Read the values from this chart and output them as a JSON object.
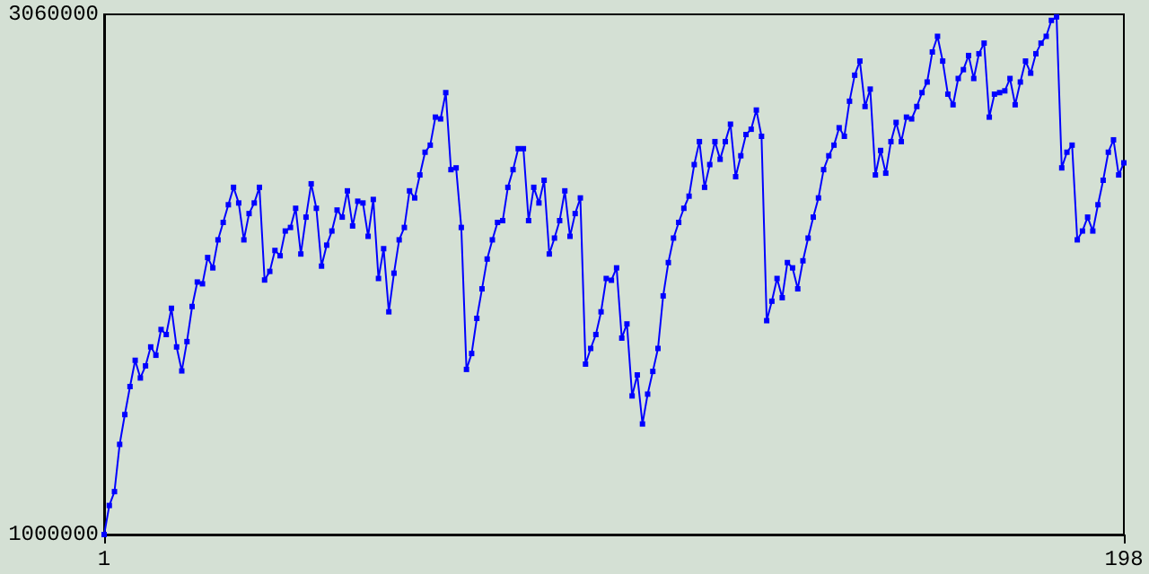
{
  "chart_data": {
    "type": "line",
    "x": [
      1,
      2,
      3,
      4,
      5,
      6,
      7,
      8,
      9,
      10,
      11,
      12,
      13,
      14,
      15,
      16,
      17,
      18,
      19,
      20,
      21,
      22,
      23,
      24,
      25,
      26,
      27,
      28,
      29,
      30,
      31,
      32,
      33,
      34,
      35,
      36,
      37,
      38,
      39,
      40,
      41,
      42,
      43,
      44,
      45,
      46,
      47,
      48,
      49,
      50,
      51,
      52,
      53,
      54,
      55,
      56,
      57,
      58,
      59,
      60,
      61,
      62,
      63,
      64,
      65,
      66,
      67,
      68,
      69,
      70,
      71,
      72,
      73,
      74,
      75,
      76,
      77,
      78,
      79,
      80,
      81,
      82,
      83,
      84,
      85,
      86,
      87,
      88,
      89,
      90,
      91,
      92,
      93,
      94,
      95,
      96,
      97,
      98,
      99,
      100,
      101,
      102,
      103,
      104,
      105,
      106,
      107,
      108,
      109,
      110,
      111,
      112,
      113,
      114,
      115,
      116,
      117,
      118,
      119,
      120,
      121,
      122,
      123,
      124,
      125,
      126,
      127,
      128,
      129,
      130,
      131,
      132,
      133,
      134,
      135,
      136,
      137,
      138,
      139,
      140,
      141,
      142,
      143,
      144,
      145,
      146,
      147,
      148,
      149,
      150,
      151,
      152,
      153,
      154,
      155,
      156,
      157,
      158,
      159,
      160,
      161,
      162,
      163,
      164,
      165,
      166,
      167,
      168,
      169,
      170,
      171,
      172,
      173,
      174,
      175,
      176,
      177,
      178,
      179,
      180,
      181,
      182,
      183,
      184,
      185,
      186,
      187,
      188,
      189,
      190,
      191,
      192,
      193,
      194,
      195,
      196,
      197,
      198
    ],
    "series": [
      {
        "color": "#0000ff",
        "values": [
          1000000,
          1115000,
          1170000,
          1357000,
          1475000,
          1586000,
          1690000,
          1620000,
          1668000,
          1743000,
          1710000,
          1812000,
          1792000,
          1896000,
          1743000,
          1648000,
          1764000,
          1903000,
          2000000,
          1993000,
          2097000,
          2056000,
          2167000,
          2236000,
          2306000,
          2375000,
          2313000,
          2167000,
          2271000,
          2313000,
          2375000,
          2008000,
          2042000,
          2125000,
          2104000,
          2202000,
          2216000,
          2292000,
          2111000,
          2257000,
          2389000,
          2292000,
          2063000,
          2146000,
          2202000,
          2285000,
          2257000,
          2361000,
          2222000,
          2320000,
          2313000,
          2181000,
          2327000,
          2014000,
          2132000,
          1882000,
          2035000,
          2167000,
          2216000,
          2361000,
          2333000,
          2424000,
          2514000,
          2542000,
          2653000,
          2646000,
          2750000,
          2445000,
          2452000,
          2216000,
          1654000,
          1717000,
          1856000,
          1973000,
          2091000,
          2167000,
          2236000,
          2243000,
          2375000,
          2445000,
          2528000,
          2528000,
          2243000,
          2375000,
          2313000,
          2403000,
          2111000,
          2174000,
          2243000,
          2361000,
          2181000,
          2271000,
          2333000,
          1675000,
          1737000,
          1792000,
          1882000,
          2014000,
          2007000,
          2056000,
          1778000,
          1834000,
          1549000,
          1632000,
          1438000,
          1556000,
          1646000,
          1737000,
          1945000,
          2077000,
          2174000,
          2236000,
          2292000,
          2340000,
          2465000,
          2556000,
          2375000,
          2465000,
          2556000,
          2486000,
          2556000,
          2625000,
          2417000,
          2500000,
          2584000,
          2605000,
          2681000,
          2577000,
          1847000,
          1924000,
          2014000,
          1938000,
          2077000,
          2056000,
          1973000,
          2084000,
          2174000,
          2257000,
          2333000,
          2445000,
          2500000,
          2542000,
          2611000,
          2577000,
          2716000,
          2819000,
          2875000,
          2695000,
          2764000,
          2424000,
          2521000,
          2431000,
          2556000,
          2632000,
          2556000,
          2653000,
          2646000,
          2695000,
          2750000,
          2792000,
          2911000,
          2973000,
          2875000,
          2744000,
          2702000,
          2806000,
          2841000,
          2897000,
          2806000,
          2904000,
          2946000,
          2653000,
          2744000,
          2750000,
          2757000,
          2806000,
          2702000,
          2792000,
          2875000,
          2827000,
          2904000,
          2946000,
          2973000,
          3036000,
          3050000,
          2452000,
          2514000,
          2542000,
          2167000,
          2202000,
          2257000,
          2202000,
          2306000,
          2403000,
          2514000,
          2563000,
          2424000,
          2472000
        ]
      }
    ],
    "xlim": [
      1,
      198
    ],
    "xticks": [
      1,
      198
    ],
    "ylim": [
      1000000,
      3060000
    ],
    "yticks": [
      1000000,
      3060000
    ],
    "marker": "square",
    "line_style": "solid",
    "grid": false
  }
}
